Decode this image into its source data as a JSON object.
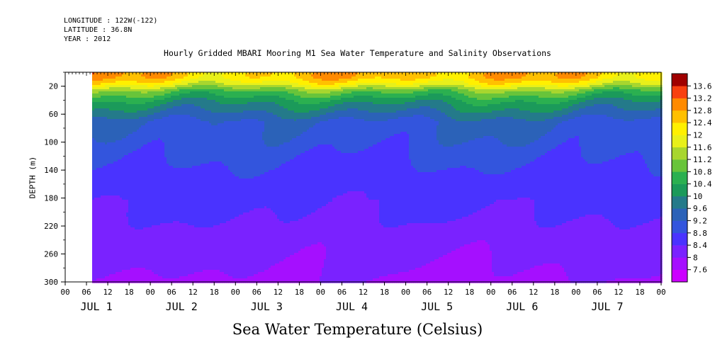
{
  "header": {
    "longitude": "LONGITUDE : 122W(-122)",
    "latitude": "LATITUDE : 36.8N",
    "year": "YEAR : 2012"
  },
  "chart_data": {
    "type": "heatmap",
    "title": "Hourly Gridded MBARI Mooring M1 Sea Water Temperature and Salinity Observations",
    "xlabel": "Sea Water Temperature (Celsius)",
    "ylabel": "DEPTH (m)",
    "x_hour_ticks": [
      "00",
      "06",
      "12",
      "18",
      "00",
      "06",
      "12",
      "18",
      "00",
      "06",
      "12",
      "18",
      "00",
      "06",
      "12",
      "18",
      "00",
      "06",
      "12",
      "18",
      "00",
      "06",
      "12",
      "18",
      "00",
      "06",
      "12",
      "18",
      "00"
    ],
    "x_day_labels": [
      "JUL 1",
      "JUL 2",
      "JUL 3",
      "JUL 4",
      "JUL 5",
      "JUL 6",
      "JUL 7"
    ],
    "y_ticks": [
      20,
      60,
      100,
      140,
      180,
      220,
      260,
      300
    ],
    "ylim": [
      300,
      0
    ],
    "colorbar_levels": [
      7.6,
      8,
      8.4,
      8.8,
      9.2,
      9.6,
      10,
      10.4,
      10.8,
      11.2,
      11.6,
      12,
      12.4,
      12.8,
      13.2,
      13.6
    ],
    "colorbar_colors": [
      "#cc00ff",
      "#a50fff",
      "#7a22ff",
      "#4a33ff",
      "#3355dd",
      "#2b62b8",
      "#247a8a",
      "#1b9a5a",
      "#2bb050",
      "#68c43a",
      "#a8d62e",
      "#e8f01a",
      "#fff000",
      "#ffc000",
      "#ff8a00",
      "#f84010",
      "#a00000"
    ],
    "data_start": "JUL 1 07:00",
    "depth_profile": [
      {
        "depth": 5,
        "temp": 12.6
      },
      {
        "depth": 15,
        "temp": 12.0
      },
      {
        "depth": 25,
        "temp": 11.0
      },
      {
        "depth": 40,
        "temp": 10.2
      },
      {
        "depth": 55,
        "temp": 9.7
      },
      {
        "depth": 70,
        "temp": 9.2
      },
      {
        "depth": 100,
        "temp": 9.0
      },
      {
        "depth": 140,
        "temp": 8.7
      },
      {
        "depth": 180,
        "temp": 8.5
      },
      {
        "depth": 220,
        "temp": 8.3
      },
      {
        "depth": 260,
        "temp": 8.1
      },
      {
        "depth": 300,
        "temp": 7.9
      }
    ],
    "grid": false,
    "legend": "colorbar-right"
  }
}
